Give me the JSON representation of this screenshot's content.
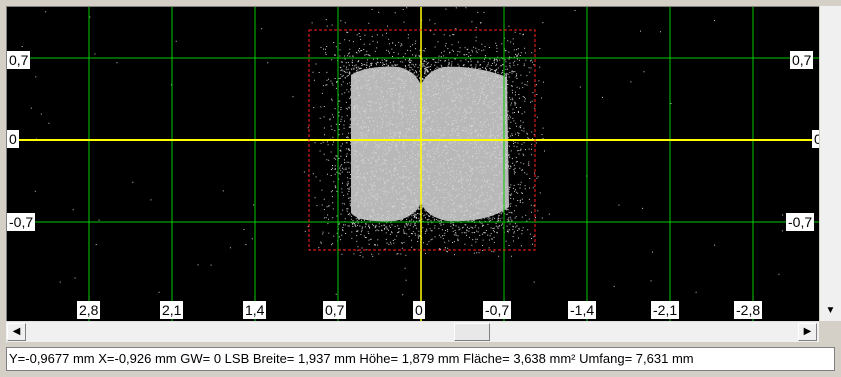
{
  "plot": {
    "y_ticks": [
      {
        "label": "0,7",
        "value": 0.7
      },
      {
        "label": "0",
        "value": 0
      },
      {
        "label": "-0,7",
        "value": -0.7
      }
    ],
    "x_ticks": [
      {
        "label": "2,8",
        "value": 2.8
      },
      {
        "label": "2,1",
        "value": 2.1
      },
      {
        "label": "1,4",
        "value": 1.4
      },
      {
        "label": "0,7",
        "value": 0.7
      },
      {
        "label": "0",
        "value": 0
      },
      {
        "label": "-0,7",
        "value": -0.7
      },
      {
        "label": "-1,4",
        "value": -1.4
      },
      {
        "label": "-2,1",
        "value": -2.1
      },
      {
        "label": "-2,8",
        "value": -2.8
      }
    ],
    "grid_color": "#00c800",
    "axis_color": "#ffff00",
    "roi_color": "#ff2020",
    "spot_color": "#b8b8b8",
    "background": "#000000"
  },
  "status": {
    "text": "Y=-0,9677  mm  X=-0,926  mm  GW= 0 LSB  Breite= 1,937 mm  Höhe= 1,879 mm  Fläche= 3,638 mm²  Umfang= 7,631 mm"
  },
  "icons": {
    "scroll_left": "left-arrow-icon",
    "scroll_right": "right-arrow-icon",
    "scroll_down": "down-arrow-icon"
  }
}
